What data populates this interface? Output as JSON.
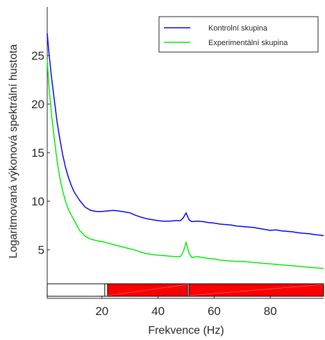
{
  "chart_data": {
    "type": "line",
    "title": "",
    "xlabel": "Frekvence (Hz)",
    "ylabel": "Logaritmovaná výkonová spektrální hustota",
    "xlim": [
      0.5,
      99
    ],
    "ylim": [
      0,
      30
    ],
    "xticks": [
      "20",
      "40",
      "60",
      "80"
    ],
    "yticks": [
      "5",
      "10",
      "15",
      "20",
      "25"
    ],
    "legend_position": "top-right",
    "series": [
      {
        "name": "Kontrolní skupina",
        "color": "#0000ff",
        "points": [
          [
            0.5,
            27.3
          ],
          [
            1,
            25.6
          ],
          [
            2,
            22.8
          ],
          [
            3,
            20.5
          ],
          [
            4,
            18.2
          ],
          [
            5,
            16.4
          ],
          [
            6,
            14.8
          ],
          [
            7,
            13.5
          ],
          [
            8,
            12.5
          ],
          [
            9,
            11.7
          ],
          [
            10,
            11.0
          ],
          [
            12,
            10.1
          ],
          [
            14,
            9.4
          ],
          [
            16,
            9.05
          ],
          [
            18,
            8.95
          ],
          [
            20,
            8.95
          ],
          [
            22,
            9.0
          ],
          [
            24,
            9.05
          ],
          [
            26,
            9.0
          ],
          [
            28,
            8.9
          ],
          [
            30,
            8.8
          ],
          [
            32,
            8.55
          ],
          [
            34,
            8.35
          ],
          [
            36,
            8.2
          ],
          [
            38,
            8.1
          ],
          [
            40,
            8.0
          ],
          [
            42,
            7.95
          ],
          [
            44,
            7.95
          ],
          [
            46,
            8.0
          ],
          [
            48,
            8.0
          ],
          [
            49,
            8.3
          ],
          [
            50,
            8.8
          ],
          [
            51,
            8.1
          ],
          [
            52,
            7.9
          ],
          [
            54,
            7.95
          ],
          [
            56,
            7.9
          ],
          [
            58,
            7.8
          ],
          [
            60,
            7.75
          ],
          [
            62,
            7.65
          ],
          [
            64,
            7.6
          ],
          [
            66,
            7.55
          ],
          [
            68,
            7.45
          ],
          [
            70,
            7.4
          ],
          [
            72,
            7.35
          ],
          [
            74,
            7.3
          ],
          [
            76,
            7.2
          ],
          [
            78,
            7.1
          ],
          [
            80,
            7.0
          ],
          [
            82,
            7.05
          ],
          [
            84,
            6.95
          ],
          [
            86,
            6.9
          ],
          [
            88,
            6.85
          ],
          [
            90,
            6.75
          ],
          [
            92,
            6.7
          ],
          [
            94,
            6.65
          ],
          [
            96,
            6.55
          ],
          [
            98,
            6.5
          ],
          [
            99,
            6.45
          ]
        ]
      },
      {
        "name": "Experimentální skupina",
        "color": "#00ee00",
        "points": [
          [
            0.5,
            24.6
          ],
          [
            1,
            22.2
          ],
          [
            2,
            19.0
          ],
          [
            3,
            16.5
          ],
          [
            4,
            14.2
          ],
          [
            5,
            12.4
          ],
          [
            6,
            11.1
          ],
          [
            7,
            10.0
          ],
          [
            8,
            9.2
          ],
          [
            9,
            8.6
          ],
          [
            10,
            8.1
          ],
          [
            12,
            7.0
          ],
          [
            14,
            6.4
          ],
          [
            16,
            6.1
          ],
          [
            18,
            5.95
          ],
          [
            20,
            5.85
          ],
          [
            22,
            5.7
          ],
          [
            24,
            5.55
          ],
          [
            26,
            5.4
          ],
          [
            28,
            5.25
          ],
          [
            30,
            5.1
          ],
          [
            32,
            4.95
          ],
          [
            34,
            4.75
          ],
          [
            36,
            4.6
          ],
          [
            38,
            4.5
          ],
          [
            40,
            4.45
          ],
          [
            42,
            4.4
          ],
          [
            44,
            4.35
          ],
          [
            46,
            4.3
          ],
          [
            48,
            4.3
          ],
          [
            49,
            4.8
          ],
          [
            50,
            5.8
          ],
          [
            51,
            4.7
          ],
          [
            52,
            4.2
          ],
          [
            54,
            4.3
          ],
          [
            56,
            4.2
          ],
          [
            58,
            4.1
          ],
          [
            60,
            4.05
          ],
          [
            62,
            3.95
          ],
          [
            64,
            3.9
          ],
          [
            66,
            3.85
          ],
          [
            68,
            3.8
          ],
          [
            70,
            3.8
          ],
          [
            72,
            3.75
          ],
          [
            74,
            3.7
          ],
          [
            76,
            3.65
          ],
          [
            78,
            3.6
          ],
          [
            80,
            3.55
          ],
          [
            82,
            3.5
          ],
          [
            84,
            3.45
          ],
          [
            86,
            3.4
          ],
          [
            88,
            3.35
          ],
          [
            90,
            3.3
          ],
          [
            92,
            3.25
          ],
          [
            94,
            3.2
          ],
          [
            96,
            3.15
          ],
          [
            98,
            3.1
          ],
          [
            99,
            3.05
          ]
        ]
      }
    ],
    "significance_bar": {
      "intervals": [
        [
          22,
          50.5
        ],
        [
          51,
          99
        ]
      ]
    }
  },
  "colors": {
    "axis": "#262626",
    "significance": "#ff0000",
    "significance_edge": "#000000"
  }
}
